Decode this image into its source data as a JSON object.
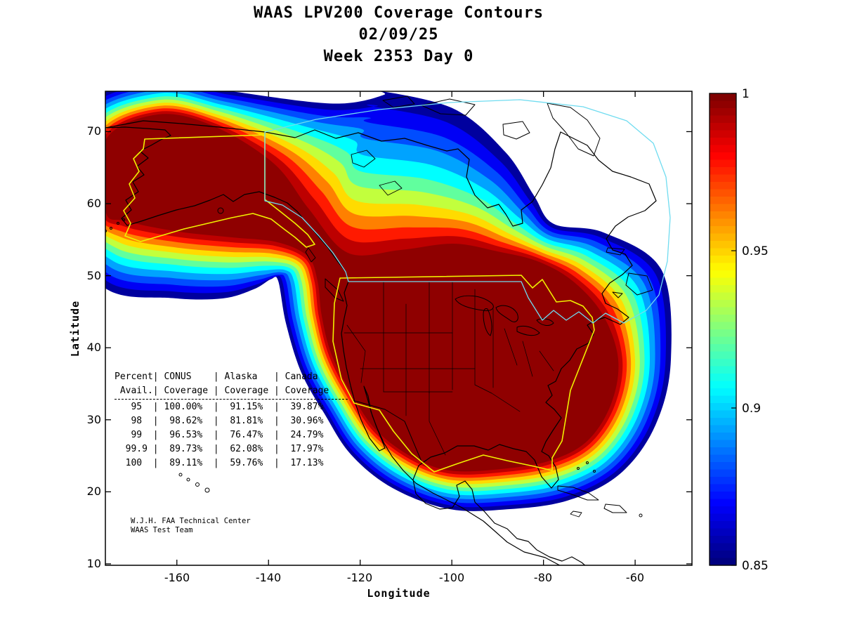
{
  "title": {
    "line1": "WAAS LPV200 Coverage Contours",
    "line2": "02/09/25",
    "line3": "Week 2353 Day 0"
  },
  "axes": {
    "x_label": "Longitude",
    "y_label": "Latitude",
    "x_ticks": [
      "-160",
      "-140",
      "-120",
      "-100",
      "-80",
      "-60"
    ],
    "x_tick_values": [
      -160,
      -140,
      -120,
      -100,
      -80,
      -60
    ],
    "y_ticks": [
      "10",
      "20",
      "30",
      "40",
      "50",
      "60",
      "70"
    ],
    "y_tick_values": [
      10,
      20,
      30,
      40,
      50,
      60,
      70
    ]
  },
  "colorbar": {
    "ticks": [
      "1",
      "0.95",
      "0.9",
      "0.85"
    ],
    "tick_values": [
      1,
      0.95,
      0.9,
      0.85
    ],
    "min": 0.85,
    "max": 1,
    "colormap": "jet"
  },
  "coverage_table": {
    "lines": [
      "Percent| CONUS    | Alaska   | Canada",
      " Avail.| Coverage | Coverage | Coverage",
      "   95  | 100.00%  |  91.15%  |  39.87%",
      "   98  |  98.62%  |  81.81%  |  30.96%",
      "   99  |  96.53%  |  76.47%  |  24.79%",
      "  99.9 |  89.73%  |  62.08%  |  17.97%",
      "  100  |  89.11%  |  59.76%  |  17.13%"
    ]
  },
  "credit": {
    "line1": "W.J.H. FAA Technical Center",
    "line2": "WAAS Test Team"
  },
  "chart_data": {
    "type": "contour_map",
    "title": "WAAS LPV200 Coverage Contours",
    "date": "02/09/25",
    "week_day": "Week 2353 Day 0",
    "xlabel": "Longitude",
    "ylabel": "Latitude",
    "xlim": [
      -175,
      -48
    ],
    "ylim": [
      10,
      75
    ],
    "x_ticks": [
      -160,
      -140,
      -120,
      -100,
      -80,
      -60
    ],
    "y_ticks": [
      10,
      20,
      30,
      40,
      50,
      60,
      70
    ],
    "contour_quantity": "LPV200 availability",
    "contour_levels_range": [
      0.85,
      1.0
    ],
    "colorbar": {
      "range": [
        0.85,
        1
      ],
      "tick_values": [
        1,
        0.95,
        0.9,
        0.85
      ],
      "colormap": "jet"
    },
    "region_outlines": [
      "CONUS (yellow)",
      "Alaska (yellow)",
      "Canada (cyan)"
    ],
    "availability_table": {
      "columns": [
        "Percent Avail.",
        "CONUS Coverage",
        "Alaska Coverage",
        "Canada Coverage"
      ],
      "rows": [
        [
          "95",
          "100.00%",
          "91.15%",
          "39.87%"
        ],
        [
          "98",
          "98.62%",
          "81.81%",
          "30.96%"
        ],
        [
          "99",
          "96.53%",
          "76.47%",
          "24.79%"
        ],
        [
          "99.9",
          "89.73%",
          "62.08%",
          "17.97%"
        ],
        [
          "100",
          "89.11%",
          "59.76%",
          "17.13%"
        ]
      ]
    }
  }
}
